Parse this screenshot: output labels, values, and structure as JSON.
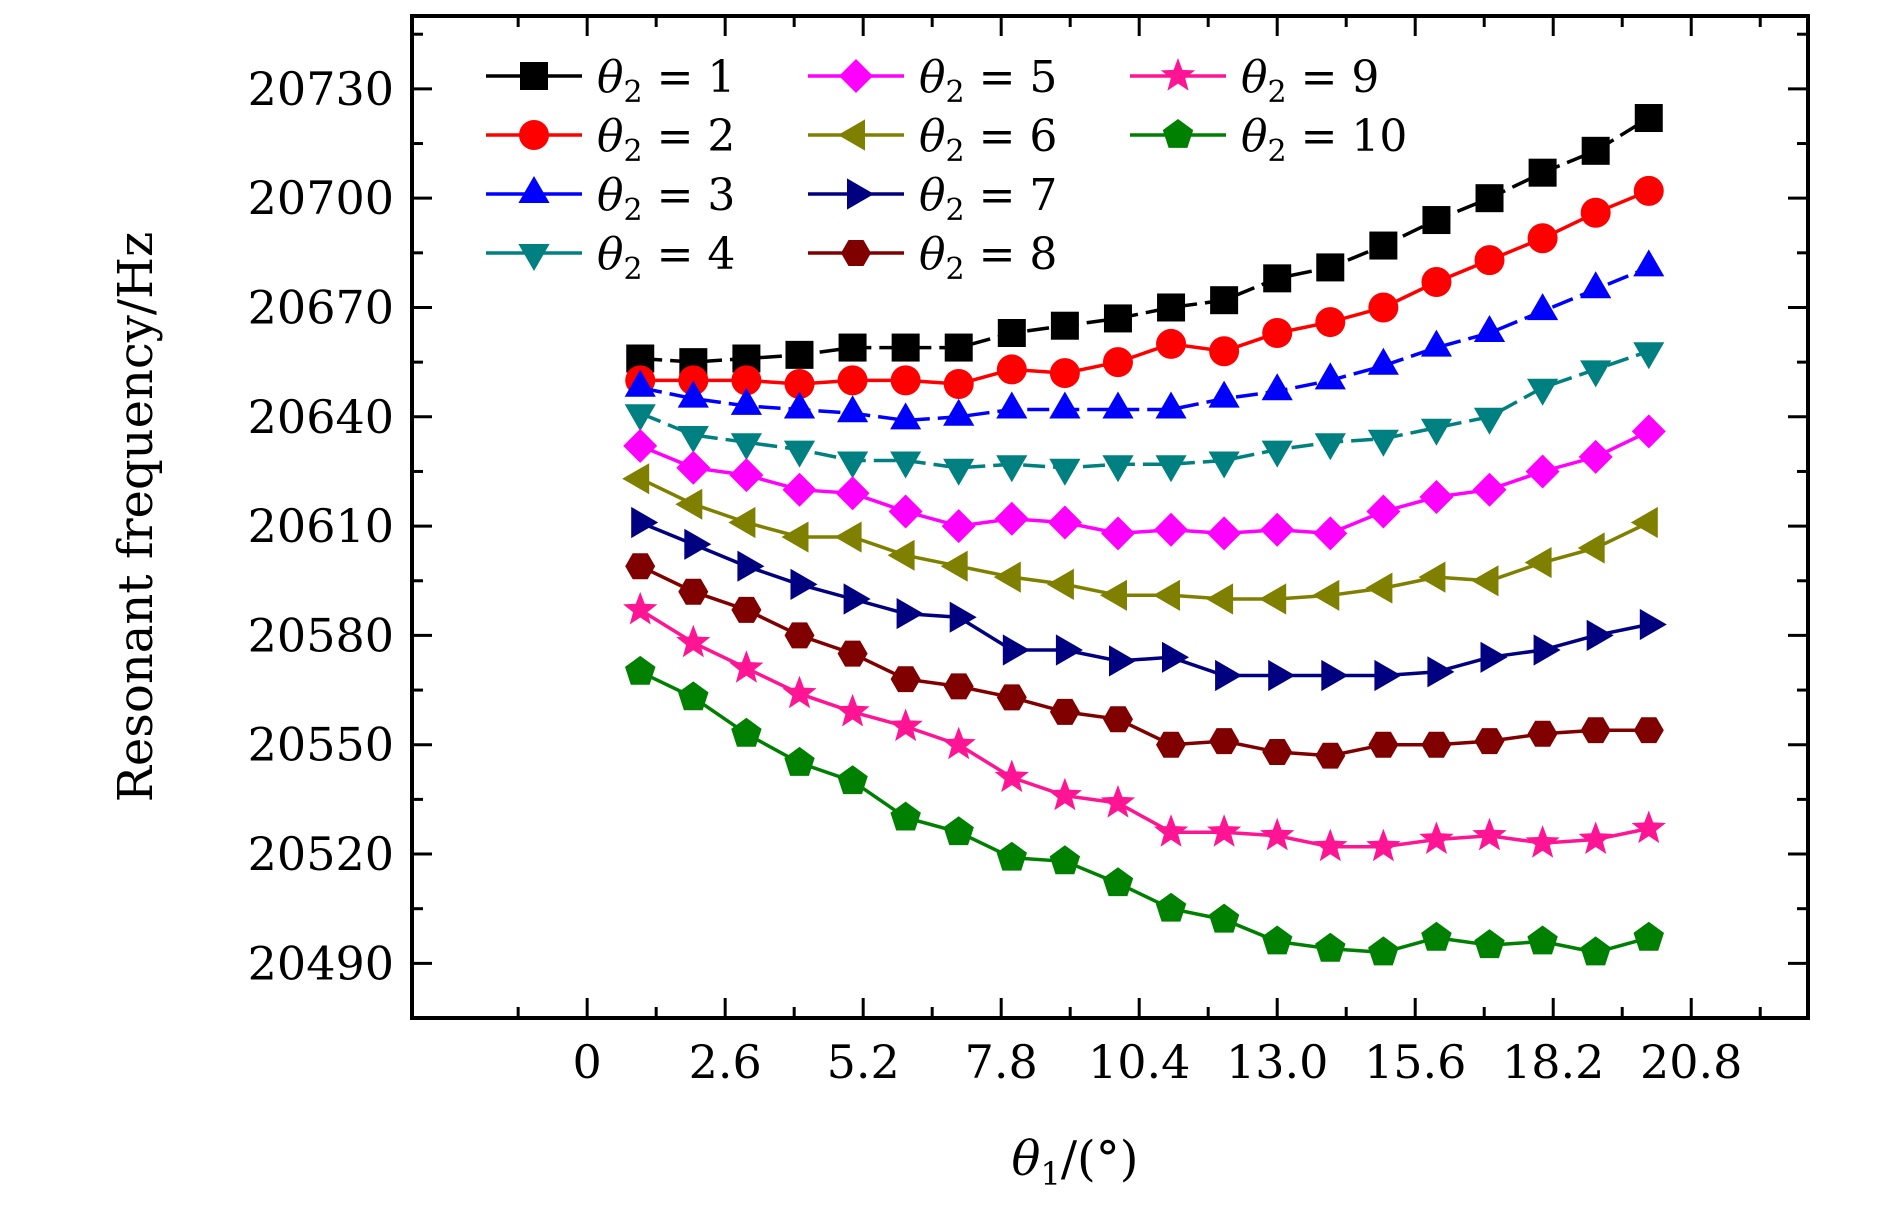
{
  "chart_data": {
    "type": "line",
    "xlabel": "θ1/(°)",
    "ylabel": "Resonant frequency/Hz",
    "xlim": [
      -3.3,
      23.0
    ],
    "ylim": [
      20475,
      20750
    ],
    "xticks": [
      0,
      2.6,
      5.2,
      7.8,
      10.4,
      13.0,
      15.6,
      18.2,
      20.8
    ],
    "xtick_labels": [
      "0",
      "2.6",
      "5.2",
      "7.8",
      "10.4",
      "13.0",
      "15.6",
      "18.2",
      "20.8"
    ],
    "yticks": [
      20490,
      20520,
      20550,
      20580,
      20610,
      20640,
      20670,
      20700,
      20730
    ],
    "ytick_labels": [
      "20490",
      "20520",
      "20550",
      "20580",
      "20610",
      "20640",
      "20670",
      "20700",
      "20730"
    ],
    "grid": false,
    "legend_position": "top-left",
    "x": [
      1,
      2,
      3,
      4,
      5,
      6,
      7,
      8,
      9,
      10,
      11,
      12,
      13,
      14,
      15,
      16,
      17,
      18,
      19,
      20
    ],
    "series": [
      {
        "name": "θ2 = 1",
        "legend_var": "θ",
        "legend_sub": "2",
        "legend_rest": " = 1",
        "color": "#000000",
        "marker": "square",
        "values": [
          20656,
          20655,
          20656,
          20657,
          20659,
          20659,
          20659,
          20663,
          20665,
          20667,
          20670,
          20672,
          20678,
          20681,
          20687,
          20694,
          20700,
          20707,
          20713,
          20722
        ]
      },
      {
        "name": "θ2 = 2",
        "legend_var": "θ",
        "legend_sub": "2",
        "legend_rest": " = 2",
        "color": "#ff0000",
        "marker": "circle",
        "values": [
          20650,
          20650,
          20650,
          20649,
          20650,
          20650,
          20649,
          20653,
          20652,
          20655,
          20660,
          20658,
          20663,
          20666,
          20670,
          20677,
          20683,
          20689,
          20696,
          20702
        ]
      },
      {
        "name": "θ2 = 3",
        "legend_var": "θ",
        "legend_sub": "2",
        "legend_rest": " = 3",
        "color": "#0000ff",
        "marker": "triangle-up",
        "values": [
          20648,
          20645,
          20643,
          20642,
          20641,
          20639,
          20640,
          20642,
          20642,
          20642,
          20642,
          20645,
          20647,
          20650,
          20654,
          20659,
          20663,
          20669,
          20675,
          20681
        ]
      },
      {
        "name": "θ2 = 4",
        "legend_var": "θ",
        "legend_sub": "2",
        "legend_rest": " = 4",
        "color": "#008080",
        "marker": "triangle-down",
        "values": [
          20641,
          20635,
          20633,
          20631,
          20628,
          20628,
          20626,
          20627,
          20626,
          20627,
          20627,
          20628,
          20631,
          20633,
          20634,
          20637,
          20640,
          20648,
          20653,
          20658
        ]
      },
      {
        "name": "θ2 = 5",
        "legend_var": "θ",
        "legend_sub": "2",
        "legend_rest": " = 5",
        "color": "#ff00ff",
        "marker": "diamond",
        "values": [
          20632,
          20626,
          20624,
          20620,
          20619,
          20614,
          20610,
          20612,
          20611,
          20608,
          20609,
          20608,
          20609,
          20608,
          20614,
          20618,
          20620,
          20625,
          20629,
          20636
        ]
      },
      {
        "name": "θ2 = 6",
        "legend_var": "θ",
        "legend_sub": "2",
        "legend_rest": " = 6",
        "color": "#808000",
        "marker": "triangle-left",
        "values": [
          20623,
          20616,
          20611,
          20607,
          20607,
          20602,
          20599,
          20596,
          20594,
          20591,
          20591,
          20590,
          20590,
          20591,
          20593,
          20596,
          20595,
          20600,
          20604,
          20611
        ]
      },
      {
        "name": "θ2 = 7",
        "legend_var": "θ",
        "legend_sub": "2",
        "legend_rest": " = 7",
        "color": "#000080",
        "marker": "triangle-right",
        "values": [
          20611,
          20605,
          20599,
          20594,
          20590,
          20586,
          20585,
          20576,
          20576,
          20573,
          20574,
          20569,
          20569,
          20569,
          20569,
          20570,
          20574,
          20576,
          20580,
          20583
        ]
      },
      {
        "name": "θ2 = 8",
        "legend_var": "θ",
        "legend_sub": "2",
        "legend_rest": " = 8",
        "color": "#800000",
        "marker": "hexagon",
        "values": [
          20599,
          20592,
          20587,
          20580,
          20575,
          20568,
          20566,
          20563,
          20559,
          20557,
          20550,
          20551,
          20548,
          20547,
          20550,
          20550,
          20551,
          20553,
          20554,
          20554
        ]
      },
      {
        "name": "θ2 = 9",
        "legend_var": "θ",
        "legend_sub": "2",
        "legend_rest": " = 9",
        "color": "#ff1493",
        "marker": "star",
        "values": [
          20587,
          20578,
          20571,
          20564,
          20559,
          20555,
          20550,
          20541,
          20536,
          20534,
          20526,
          20526,
          20525,
          20522,
          20522,
          20524,
          20525,
          20523,
          20524,
          20527
        ]
      },
      {
        "name": "θ2 = 10",
        "legend_var": "θ",
        "legend_sub": "2",
        "legend_rest": " = 10",
        "color": "#008000",
        "marker": "pentagon",
        "values": [
          20570,
          20563,
          20553,
          20545,
          20540,
          20530,
          20526,
          20519,
          20518,
          20512,
          20505,
          20502,
          20496,
          20494,
          20493,
          20497,
          20495,
          20496,
          20493,
          20497
        ]
      }
    ]
  }
}
